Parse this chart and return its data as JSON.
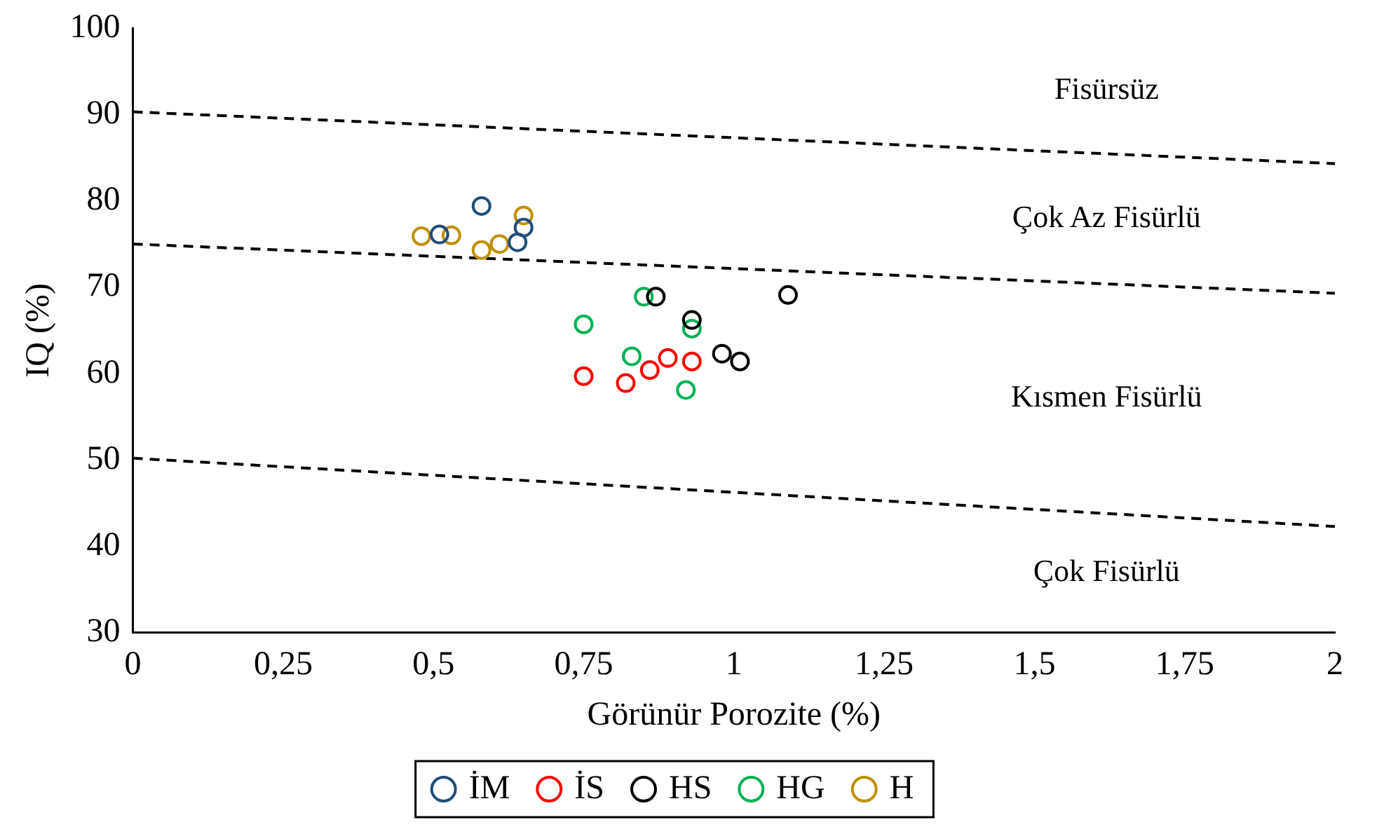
{
  "chart_data": {
    "type": "scatter",
    "xlabel": "Görünür Porozite (%)",
    "ylabel": "IQ (%)",
    "xlim": [
      0,
      2
    ],
    "ylim": [
      30,
      100
    ],
    "xticks": [
      0,
      {
        "value": 0.25,
        "label": "0,25"
      },
      {
        "value": 0.5,
        "label": "0,5"
      },
      {
        "value": 0.75,
        "label": "0,75"
      },
      1,
      {
        "value": 1.25,
        "label": "1,25"
      },
      {
        "value": 1.5,
        "label": "1,5"
      },
      {
        "value": 1.75,
        "label": "1,75"
      },
      2
    ],
    "yticks": [
      30,
      40,
      50,
      60,
      70,
      80,
      90,
      100
    ],
    "legend": "bottom",
    "marker": "circle",
    "series": [
      {
        "name": "İM",
        "color": "#1f4e79",
        "x": [
          0.58,
          0.51,
          0.64,
          0.65
        ],
        "values": [
          79.4,
          76.1,
          75.2,
          76.9
        ]
      },
      {
        "name": "İS",
        "color": "#ff0000",
        "x": [
          0.75,
          0.82,
          0.86,
          0.89,
          0.93
        ],
        "values": [
          59.7,
          58.9,
          60.4,
          61.8,
          61.4
        ]
      },
      {
        "name": "HS",
        "color": "#000000",
        "x": [
          0.87,
          1.09,
          0.93,
          0.98,
          1.01
        ],
        "values": [
          68.9,
          69.1,
          66.2,
          62.3,
          61.4
        ]
      },
      {
        "name": "HG",
        "color": "#00b050",
        "x": [
          0.85,
          0.75,
          0.93,
          0.83,
          0.92
        ],
        "values": [
          68.9,
          65.7,
          65.2,
          62.0,
          58.1
        ]
      },
      {
        "name": "H",
        "color": "#bf9000",
        "x": [
          0.48,
          0.53,
          0.58,
          0.61,
          0.65
        ],
        "values": [
          75.9,
          76.0,
          74.3,
          75.0,
          78.3
        ]
      },
      {
        "type": "line",
        "color": "#000000",
        "line_style": "dashed",
        "marker": "none",
        "x": [
          0,
          2
        ],
        "values": [
          90.3,
          84.3
        ]
      },
      {
        "type": "line",
        "color": "#000000",
        "line_style": "dashed",
        "marker": "none",
        "x": [
          0,
          2
        ],
        "values": [
          75.0,
          69.3
        ]
      },
      {
        "type": "line",
        "color": "#000000",
        "line_style": "dashed",
        "marker": "none",
        "x": [
          0,
          2
        ],
        "values": [
          50.2,
          42.3
        ]
      }
    ],
    "annotations": [
      "Fisürsüz",
      "Çok Az Fisürlü",
      "Kısmen Fisürlü",
      "Çok Fisürlü"
    ]
  }
}
